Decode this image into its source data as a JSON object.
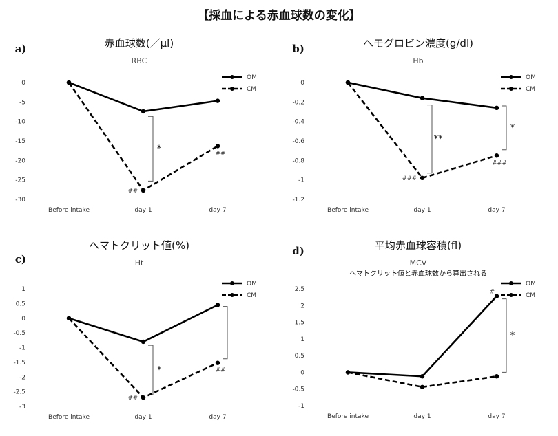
{
  "page": {
    "title": "【採血による赤血球数の変化】"
  },
  "chart_data": [
    {
      "type": "line",
      "panel_label": "a)",
      "title": "赤血球数(／μl)",
      "subtitle": "RBC",
      "categories": [
        "Before intake",
        "day 1",
        "day 7"
      ],
      "series": [
        {
          "name": "OM",
          "values": [
            0,
            -7.4,
            -4.7
          ],
          "style": "solid"
        },
        {
          "name": "CM",
          "values": [
            0,
            -27.7,
            -16.3
          ],
          "style": "dashed"
        }
      ],
      "ylim": [
        -30,
        0
      ],
      "yticks": [
        "0",
        "-5",
        "-10",
        "-15",
        "-20",
        "-25",
        "-30"
      ],
      "legend": "top-right",
      "grid": false,
      "annotations": [
        {
          "text": "##",
          "category": "day 1",
          "series": "CM"
        },
        {
          "text": "##",
          "category": "day 7",
          "series": "CM"
        }
      ],
      "significance": [
        {
          "text": "*",
          "category": "day 1",
          "range": [
            -8.7,
            -25.3
          ]
        }
      ]
    },
    {
      "type": "line",
      "panel_label": "b)",
      "title": "ヘモグロビン濃度(g/dl)",
      "subtitle": "Hb",
      "categories": [
        "Before intake",
        "day 1",
        "day 7"
      ],
      "series": [
        {
          "name": "OM",
          "values": [
            0,
            -0.16,
            -0.26
          ],
          "style": "solid"
        },
        {
          "name": "CM",
          "values": [
            0,
            -0.98,
            -0.75
          ],
          "style": "dashed"
        }
      ],
      "ylim": [
        -1.2,
        0
      ],
      "yticks": [
        "0",
        "-0.2",
        "-0.4",
        "-0.6",
        "-0.8",
        "-1",
        "-1.2"
      ],
      "legend": "top-right",
      "grid": false,
      "annotations": [
        {
          "text": "###",
          "category": "day 1",
          "series": "CM"
        },
        {
          "text": "###",
          "category": "day 7",
          "series": "CM"
        }
      ],
      "significance": [
        {
          "text": "**",
          "category": "day 1",
          "range": [
            -0.23,
            -0.93
          ]
        },
        {
          "text": "*",
          "category": "day 7",
          "range": [
            -0.24,
            -0.69
          ]
        }
      ]
    },
    {
      "type": "line",
      "panel_label": "c)",
      "title": "ヘマトクリット値(%)",
      "subtitle": "Ht",
      "categories": [
        "Before intake",
        "day 1",
        "day 7"
      ],
      "series": [
        {
          "name": "OM",
          "values": [
            0,
            -0.8,
            0.45
          ],
          "style": "solid"
        },
        {
          "name": "CM",
          "values": [
            0,
            -2.7,
            -1.52
          ],
          "style": "dashed"
        }
      ],
      "ylim": [
        -3,
        1
      ],
      "yticks": [
        "1",
        "0.5",
        "0",
        "-0.5",
        "-1",
        "-1.5",
        "-2",
        "-2.5",
        "-3"
      ],
      "legend": "top-right",
      "grid": false,
      "annotations": [
        {
          "text": "##",
          "category": "day 1",
          "series": "CM"
        },
        {
          "text": "##",
          "category": "day 7",
          "series": "CM"
        }
      ],
      "significance": [
        {
          "text": "*",
          "category": "day 1",
          "range": [
            -0.92,
            -2.6
          ]
        },
        {
          "text": "",
          "category": "day 7",
          "range": [
            0.4,
            -1.38
          ]
        }
      ]
    },
    {
      "type": "line",
      "panel_label": "d)",
      "title": "平均赤血球容積(fl)",
      "subtitle": "MCV",
      "note": "ヘマトクリット値と赤血球数から算出される",
      "categories": [
        "Before intake",
        "day 1",
        "day 7"
      ],
      "series": [
        {
          "name": "OM",
          "values": [
            0,
            -0.12,
            2.28
          ],
          "style": "solid"
        },
        {
          "name": "CM",
          "values": [
            0,
            -0.44,
            -0.12
          ],
          "style": "dashed"
        }
      ],
      "ylim": [
        -1,
        2.5
      ],
      "yticks": [
        "2.5",
        "2",
        "1.5",
        "1",
        "0.5",
        "0",
        "-0.5",
        "-1"
      ],
      "legend": "top-right",
      "grid": false,
      "annotations": [
        {
          "text": "#",
          "category": "day 7",
          "series": "OM"
        }
      ],
      "significance": [
        {
          "text": "*",
          "category": "day 7",
          "range": [
            2.2,
            0.0
          ]
        }
      ]
    }
  ]
}
